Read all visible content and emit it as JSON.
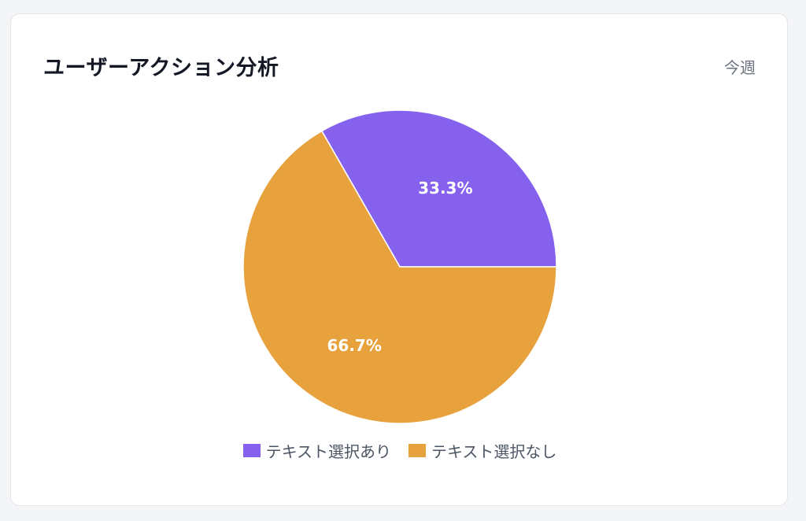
{
  "card": {
    "title": "ユーザーアクション分析",
    "period": "今週"
  },
  "chart_data": {
    "type": "pie",
    "categories": [
      "テキスト選択あり",
      "テキスト選択なし"
    ],
    "values": [
      33.3,
      66.7
    ],
    "labels": [
      "33.3%",
      "66.7%"
    ],
    "colors": [
      "#8561ee",
      "#e8a23d"
    ],
    "legend_position": "bottom"
  }
}
